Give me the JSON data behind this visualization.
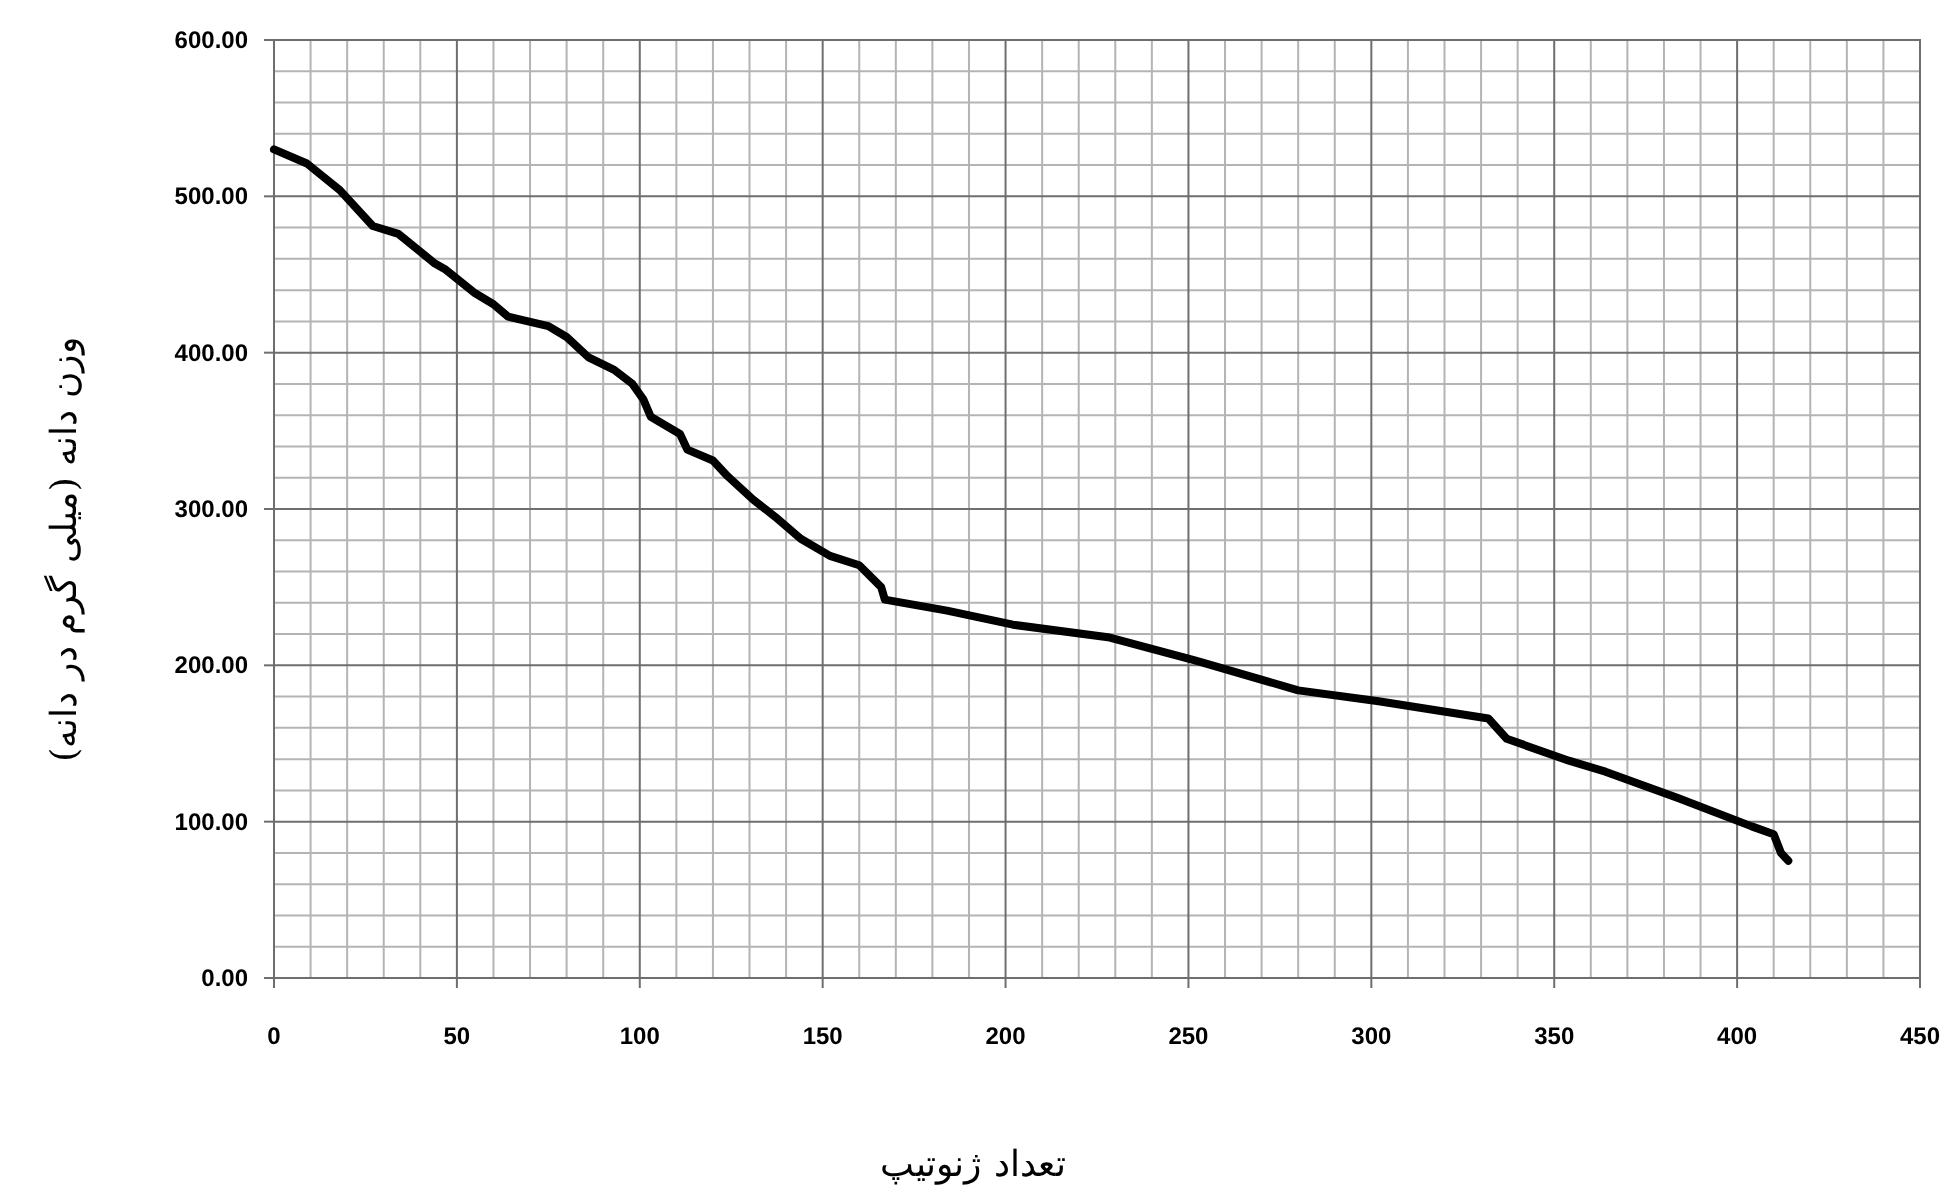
{
  "chart_data": {
    "type": "line",
    "xlabel": "تعداد ژنوتیپ",
    "ylabel": "وزن دانه (میلی گرم در دانه)",
    "xlim": [
      0,
      450
    ],
    "xticks": [
      0,
      50,
      100,
      150,
      200,
      250,
      300,
      350,
      400,
      450
    ],
    "ylim": [
      0,
      600
    ],
    "yticks": [
      {
        "value": 0,
        "label": "0.00"
      },
      {
        "value": 100,
        "label": "100.00"
      },
      {
        "value": 200,
        "label": "200.00"
      },
      {
        "value": 300,
        "label": "300.00"
      },
      {
        "value": 400,
        "label": "400.00"
      },
      {
        "value": 500,
        "label": "500.00"
      },
      {
        "value": 600,
        "label": "600.00"
      }
    ],
    "grid": true,
    "marker": "none",
    "line_style": "solid",
    "series": [
      {
        "color": "#000000",
        "x": [
          0,
          9,
          18,
          27,
          34,
          44,
          47,
          55,
          60,
          64,
          75,
          80,
          86,
          93,
          98,
          101,
          103,
          111,
          113,
          120,
          124,
          131,
          137,
          144,
          152,
          160,
          166,
          167,
          184,
          202,
          228,
          252,
          280,
          302,
          332,
          337,
          354,
          364,
          384,
          404,
          410,
          412,
          414
        ],
        "values": [
          530,
          521,
          504,
          481,
          476,
          457,
          453,
          438,
          431,
          423,
          417,
          410,
          397,
          389,
          380,
          370,
          359,
          348,
          338,
          331,
          321,
          306,
          295,
          281,
          270,
          264,
          250,
          242,
          235,
          226,
          218,
          203,
          184,
          177,
          166,
          153,
          139,
          132,
          115,
          97,
          92,
          80,
          75
        ]
      }
    ]
  }
}
